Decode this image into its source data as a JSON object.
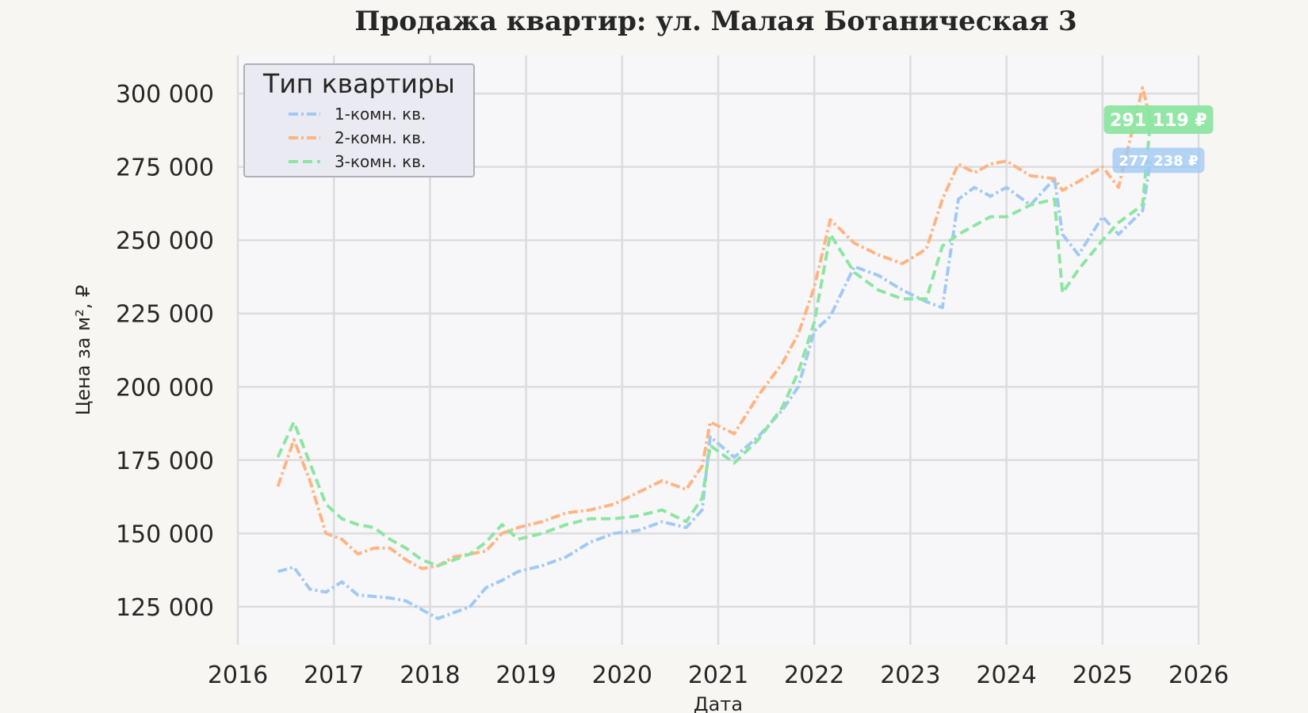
{
  "chart_data": {
    "type": "line",
    "title": "Продажа квартир: ул. Малая Ботаническая 3",
    "xlabel": "Дата",
    "ylabel": "Цена за м², ₽",
    "xlim": [
      2016,
      2026
    ],
    "ylim": [
      112000,
      313000
    ],
    "x_ticks": [
      "2016",
      "2017",
      "2018",
      "2019",
      "2020",
      "2021",
      "2022",
      "2023",
      "2024",
      "2025",
      "2026"
    ],
    "y_ticks": [
      125000,
      150000,
      175000,
      200000,
      225000,
      250000,
      275000,
      300000
    ],
    "y_tick_labels": [
      "125 000",
      "150 000",
      "175 000",
      "200 000",
      "225 000",
      "250 000",
      "275 000",
      "300 000"
    ],
    "grid": true,
    "legend": {
      "title": "Тип квартиры",
      "placement": "top-left"
    },
    "series": [
      {
        "name": "1-комн. кв.",
        "color": "#a1c9f4",
        "dash": "dash-dot",
        "x": [
          "2016-06",
          "2016-08",
          "2016-10",
          "2016-12",
          "2017-02",
          "2017-04",
          "2017-06",
          "2017-08",
          "2017-10",
          "2017-12",
          "2018-02",
          "2018-04",
          "2018-06",
          "2018-08",
          "2018-10",
          "2018-12",
          "2019-03",
          "2019-06",
          "2019-09",
          "2019-12",
          "2020-03",
          "2020-06",
          "2020-09",
          "2020-11",
          "2020-12",
          "2021-03",
          "2021-06",
          "2021-09",
          "2021-11",
          "2022-01",
          "2022-03",
          "2022-06",
          "2022-09",
          "2022-12",
          "2023-03",
          "2023-05",
          "2023-07",
          "2023-09",
          "2023-11",
          "2024-01",
          "2024-04",
          "2024-07",
          "2024-08",
          "2024-10",
          "2025-01",
          "2025-03",
          "2025-06",
          "2025-07"
        ],
        "values": [
          137000,
          138500,
          131000,
          130000,
          133500,
          129000,
          128500,
          128000,
          127000,
          124000,
          121000,
          123000,
          125000,
          131500,
          134000,
          137000,
          139000,
          142000,
          147000,
          150000,
          151000,
          154000,
          152000,
          158000,
          183000,
          176000,
          183000,
          192000,
          200000,
          219000,
          224000,
          241000,
          238000,
          233000,
          229000,
          227000,
          264000,
          268000,
          265000,
          268000,
          262000,
          271000,
          252000,
          245000,
          258000,
          252000,
          260000,
          277238
        ]
      },
      {
        "name": "2-комн. кв.",
        "color": "#ffb482",
        "dash": "dash-dot",
        "x": [
          "2016-06",
          "2016-08",
          "2016-10",
          "2016-12",
          "2017-02",
          "2017-04",
          "2017-06",
          "2017-08",
          "2017-10",
          "2017-12",
          "2018-02",
          "2018-04",
          "2018-06",
          "2018-08",
          "2018-10",
          "2018-12",
          "2019-03",
          "2019-06",
          "2019-09",
          "2019-12",
          "2020-03",
          "2020-06",
          "2020-09",
          "2020-11",
          "2020-12",
          "2021-03",
          "2021-06",
          "2021-09",
          "2021-11",
          "2022-01",
          "2022-03",
          "2022-06",
          "2022-09",
          "2022-12",
          "2023-03",
          "2023-05",
          "2023-07",
          "2023-09",
          "2023-11",
          "2024-01",
          "2024-04",
          "2024-07",
          "2024-08",
          "2024-10",
          "2025-01",
          "2025-03",
          "2025-06",
          "2025-07"
        ],
        "values": [
          166000,
          182000,
          168000,
          150000,
          148000,
          143000,
          145000,
          145000,
          141000,
          138000,
          139000,
          142000,
          143000,
          144000,
          150000,
          152000,
          154000,
          157000,
          158000,
          160000,
          164000,
          168000,
          165000,
          173000,
          188000,
          184000,
          197000,
          208000,
          218000,
          234000,
          257000,
          249000,
          245000,
          242000,
          247000,
          264000,
          276000,
          273000,
          276000,
          277000,
          272000,
          271000,
          267000,
          270000,
          275000,
          268000,
          302000,
          291119
        ]
      },
      {
        "name": "3-комн. кв.",
        "color": "#8de5a1",
        "dash": "dashed",
        "x": [
          "2016-06",
          "2016-08",
          "2016-10",
          "2016-12",
          "2017-02",
          "2017-04",
          "2017-06",
          "2017-08",
          "2017-10",
          "2017-12",
          "2018-02",
          "2018-04",
          "2018-06",
          "2018-08",
          "2018-10",
          "2018-12",
          "2019-03",
          "2019-06",
          "2019-09",
          "2019-12",
          "2020-03",
          "2020-06",
          "2020-09",
          "2020-11",
          "2020-12",
          "2021-03",
          "2021-06",
          "2021-09",
          "2021-11",
          "2022-01",
          "2022-03",
          "2022-06",
          "2022-09",
          "2022-12",
          "2023-03",
          "2023-05",
          "2023-07",
          "2023-09",
          "2023-11",
          "2024-01",
          "2024-04",
          "2024-07",
          "2024-08",
          "2024-10",
          "2025-01",
          "2025-03",
          "2025-06",
          "2025-07"
        ],
        "values": [
          176000,
          188000,
          174000,
          160000,
          155000,
          153000,
          152000,
          148000,
          145000,
          141000,
          139000,
          141000,
          143000,
          147000,
          153000,
          148000,
          150000,
          153000,
          155000,
          155000,
          156000,
          158000,
          154000,
          162000,
          180000,
          174000,
          182000,
          193000,
          205000,
          222000,
          252000,
          239000,
          233000,
          230000,
          230000,
          248000,
          252000,
          255000,
          258000,
          258000,
          262000,
          264000,
          232000,
          240000,
          250000,
          256000,
          262000,
          291119
        ]
      }
    ],
    "annotations": [
      {
        "text": "291 119 ₽",
        "x": "2025-07",
        "y": 291119,
        "color": "#8de5a1"
      },
      {
        "text": "277 238 ₽",
        "x": "2025-07",
        "y": 277238,
        "color": "#a1c9f4"
      }
    ]
  }
}
